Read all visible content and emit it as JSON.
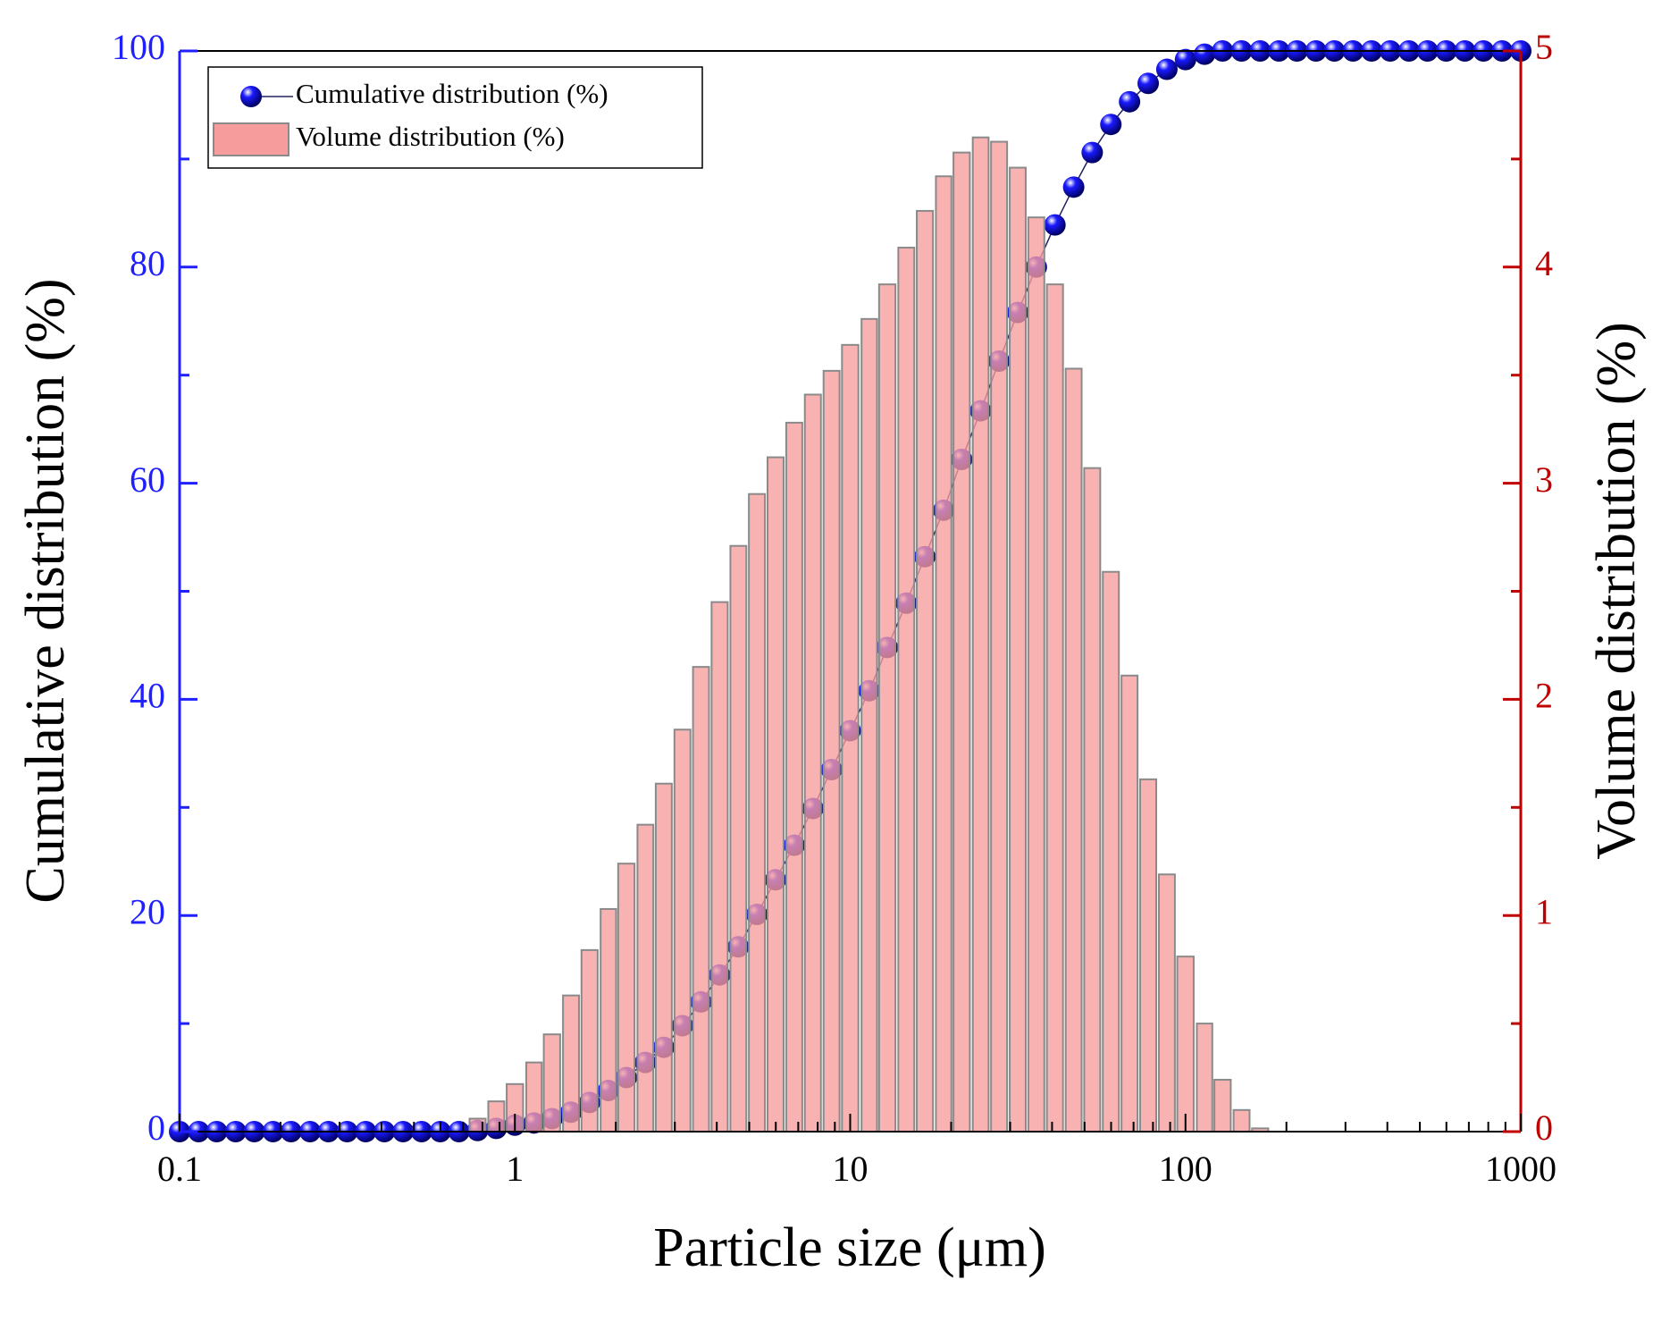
{
  "chart_data": {
    "type": "combo",
    "xlabel": "Particle size (μm)",
    "ylabel": "Cumulative distribution (%)",
    "y2label": "Volume distribution (%)",
    "xscale": "log",
    "xlim": [
      0.1,
      1000
    ],
    "xticks": [
      0.1,
      1,
      10,
      100,
      1000
    ],
    "ylim": [
      0,
      100
    ],
    "yticks": [
      0,
      20,
      40,
      60,
      80,
      100
    ],
    "y2lim": [
      0,
      5
    ],
    "y2ticks": [
      0,
      1,
      2,
      3,
      4,
      5
    ],
    "legend": "upper left",
    "ycolor": "#1f1fff",
    "y2color": "#c00000",
    "x": [
      0.1,
      0.114,
      0.129,
      0.147,
      0.167,
      0.19,
      0.215,
      0.245,
      0.278,
      0.316,
      0.359,
      0.408,
      0.464,
      0.527,
      0.599,
      0.681,
      0.774,
      0.88,
      1,
      1.14,
      1.29,
      1.47,
      1.67,
      1.9,
      2.15,
      2.45,
      2.78,
      3.16,
      3.59,
      4.08,
      4.64,
      5.27,
      5.99,
      6.81,
      7.74,
      8.8,
      10,
      11.4,
      12.9,
      14.7,
      16.7,
      19,
      21.5,
      24.5,
      27.8,
      31.6,
      35.9,
      40.8,
      46.4,
      52.7,
      59.9,
      68.1,
      77.4,
      88,
      100,
      114,
      129,
      147,
      167,
      190,
      215,
      245,
      278,
      316,
      359,
      408,
      464,
      527,
      599,
      681,
      774,
      880,
      1000
    ],
    "series": [
      {
        "name": "Cumulative distribution (%)",
        "type": "line",
        "axis": "y",
        "color": "#1a1aff",
        "values": [
          0,
          0,
          0,
          0,
          0,
          0,
          0,
          0,
          0,
          0,
          0,
          0,
          0,
          0,
          0,
          0,
          0.1,
          0.3,
          0.6,
          0.8,
          1.2,
          1.8,
          2.7,
          3.8,
          5.0,
          6.4,
          7.8,
          9.8,
          12.0,
          14.5,
          17.1,
          20.1,
          23.3,
          26.5,
          29.9,
          33.5,
          37.1,
          40.8,
          44.8,
          48.9,
          53.2,
          57.5,
          62.2,
          66.7,
          71.3,
          75.8,
          80.0,
          83.9,
          87.4,
          90.6,
          93.2,
          95.3,
          97.0,
          98.3,
          99.2,
          99.7,
          100,
          100,
          100,
          100,
          100,
          100,
          100,
          100,
          100,
          100,
          100,
          100,
          100,
          100,
          100,
          100,
          100
        ]
      },
      {
        "name": "Volume distribution (%)",
        "type": "bar",
        "axis": "y2",
        "color": "#f79c9c",
        "values": [
          0,
          0,
          0,
          0,
          0,
          0,
          0,
          0,
          0,
          0,
          0,
          0,
          0,
          0,
          0,
          0,
          0.06,
          0.14,
          0.22,
          0.32,
          0.45,
          0.63,
          0.84,
          1.03,
          1.24,
          1.42,
          1.61,
          1.86,
          2.15,
          2.45,
          2.71,
          2.95,
          3.12,
          3.28,
          3.41,
          3.52,
          3.64,
          3.76,
          3.92,
          4.09,
          4.26,
          4.42,
          4.53,
          4.6,
          4.58,
          4.46,
          4.23,
          3.92,
          3.53,
          3.07,
          2.59,
          2.11,
          1.63,
          1.19,
          0.81,
          0.5,
          0.24,
          0.1,
          0.015,
          0,
          0,
          0,
          0,
          0,
          0,
          0,
          0,
          0,
          0,
          0,
          0,
          0,
          0
        ]
      }
    ]
  }
}
